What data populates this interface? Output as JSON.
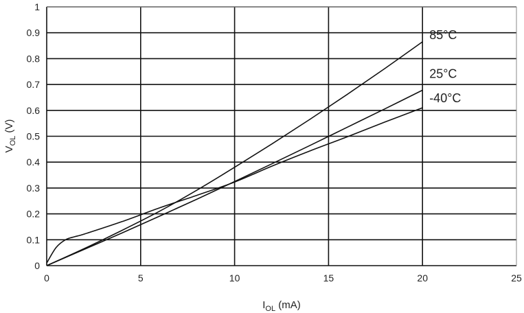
{
  "chart_data": {
    "type": "line",
    "title": "",
    "xlabel": {
      "main": "I",
      "sub": "OL",
      "unit": " (mA)"
    },
    "ylabel": {
      "main": "V",
      "sub": "OL",
      "unit": " (V)"
    },
    "xlim": [
      0,
      25
    ],
    "ylim": [
      0,
      1
    ],
    "x_ticks": [
      "0",
      "5",
      "10",
      "15",
      "20",
      "25"
    ],
    "y_ticks": [
      "0",
      "0.1",
      "0.2",
      "0.3",
      "0.4",
      "0.5",
      "0.6",
      "0.7",
      "0.8",
      "0.9",
      "1"
    ],
    "grid": true,
    "legend": "none",
    "series": [
      {
        "name": "85°C",
        "x": [
          0,
          2,
          4,
          6,
          8,
          10,
          12,
          14,
          16,
          18,
          20
        ],
        "y": [
          0,
          0.066,
          0.136,
          0.21,
          0.292,
          0.38,
          0.471,
          0.565,
          0.662,
          0.762,
          0.865
        ]
      },
      {
        "name": "25°C",
        "x": [
          0,
          2,
          4,
          6,
          8,
          10,
          12,
          14,
          16,
          18,
          20
        ],
        "y": [
          0,
          0.063,
          0.126,
          0.191,
          0.257,
          0.325,
          0.394,
          0.464,
          0.535,
          0.606,
          0.678
        ]
      },
      {
        "name": "-40°C",
        "x": [
          0,
          0.5,
          1,
          1.5,
          2,
          4,
          6,
          8,
          10,
          12,
          14,
          16,
          18,
          20
        ],
        "y": [
          0.01,
          0.07,
          0.1,
          0.112,
          0.122,
          0.17,
          0.223,
          0.272,
          0.323,
          0.385,
          0.443,
          0.498,
          0.555,
          0.61
        ]
      }
    ]
  }
}
